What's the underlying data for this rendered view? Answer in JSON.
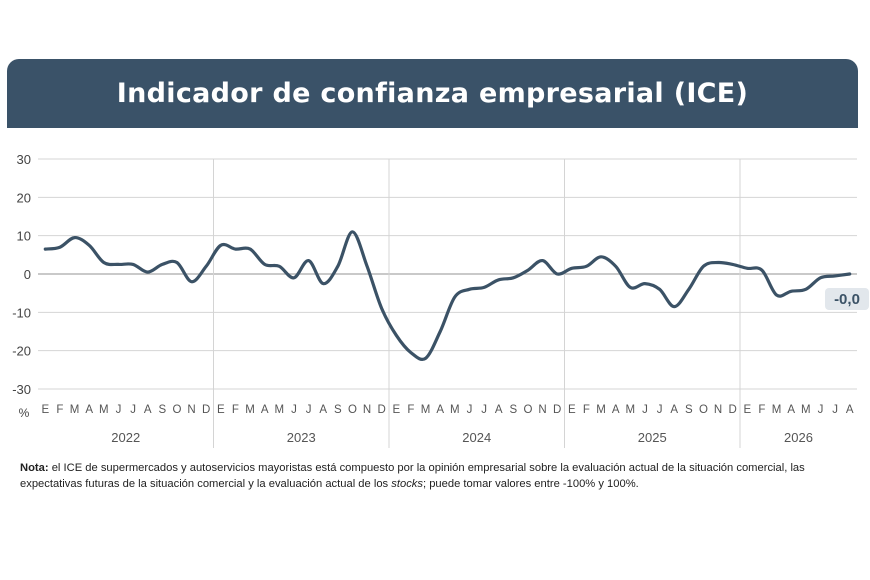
{
  "colors": {
    "banner": "#3a5268",
    "line": "#3b5266",
    "grid": "#d4d4d4",
    "zero": "#a9a9a9",
    "badge": "#e2e7ec"
  },
  "header": {
    "title": "Indicador de confianza empresarial (ICE)"
  },
  "chart_data": {
    "type": "line",
    "title": "Indicador de confianza empresarial (ICE)",
    "ylabel": "%",
    "ylim": [
      -30,
      30
    ],
    "yticks": [
      30,
      20,
      10,
      0,
      -10,
      -20,
      -30
    ],
    "grid": true,
    "month_labels": [
      "E",
      "F",
      "M",
      "A",
      "M",
      "J",
      "J",
      "A",
      "S",
      "O",
      "N",
      "D",
      "E",
      "F",
      "M",
      "A",
      "M",
      "J",
      "J",
      "A",
      "S",
      "O",
      "N",
      "D",
      "E",
      "F",
      "M",
      "A",
      "M",
      "J",
      "J",
      "A",
      "S",
      "O",
      "N",
      "D",
      "E",
      "F",
      "M",
      "A",
      "M",
      "J",
      "J",
      "A",
      "S",
      "O",
      "N",
      "D",
      "E",
      "F",
      "M",
      "A",
      "M",
      "J",
      "J",
      "A"
    ],
    "year_labels": [
      "2022",
      "2023",
      "2024",
      "2025",
      "2026"
    ],
    "year_month_counts": [
      12,
      12,
      12,
      12,
      8
    ],
    "last_value_label": "-0,0",
    "series": [
      {
        "values": [
          6.5,
          7,
          9.5,
          7.5,
          3,
          2.5,
          2.5,
          0.5,
          2.5,
          3,
          -2,
          2,
          7.5,
          6.5,
          6.5,
          2.5,
          2,
          -1,
          3.5,
          -2.5,
          2,
          11,
          2,
          -9,
          -16,
          -20.5,
          -22,
          -15,
          -6,
          -4,
          -3.5,
          -1.5,
          -1,
          1,
          3.5,
          0,
          1.5,
          2,
          4.5,
          2,
          -3.5,
          -2.5,
          -4,
          -8.5,
          -4,
          2,
          3,
          2.5,
          1.5,
          1,
          -5.5,
          -4.5,
          -4,
          -1,
          -0.5,
          0
        ]
      }
    ]
  },
  "note": {
    "prefix": "Nota:",
    "text_1": " el ICE de supermercados y autoservicios mayoristas está compuesto por la opinión empresarial sobre la evaluación actual de la situación comercial, las expectativas futuras de la situación comercial y la evaluación actual de los ",
    "text_italic": "stocks",
    "text_2": "; puede tomar valores entre -100% y 100%."
  }
}
